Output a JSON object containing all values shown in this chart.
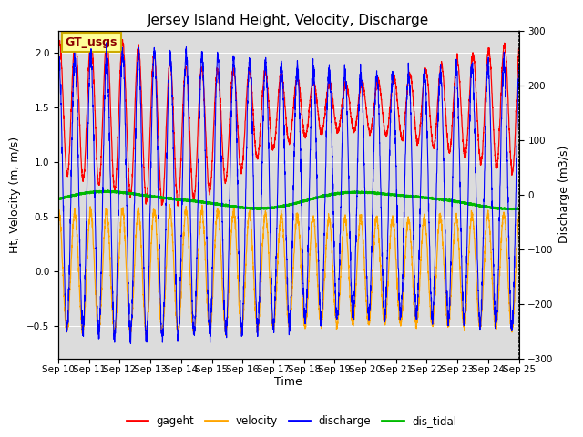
{
  "title": "Jersey Island Height, Velocity, Discharge",
  "xlabel": "Time",
  "ylabel_left": "Ht, Velocity (m, m/s)",
  "ylabel_right": "Discharge (m3/s)",
  "ylim_left": [
    -0.8,
    2.2
  ],
  "ylim_right": [
    -300,
    300
  ],
  "xlim": [
    0,
    360
  ],
  "x_tick_labels": [
    "Sep 10",
    "Sep 11",
    "Sep 12",
    "Sep 13",
    "Sep 14",
    "Sep 15",
    "Sep 16",
    "Sep 17",
    "Sep 18",
    "Sep 19",
    "Sep 20",
    "Sep 21",
    "Sep 22",
    "Sep 23",
    "Sep 24",
    "Sep 25"
  ],
  "x_tick_positions": [
    0,
    24,
    48,
    72,
    96,
    120,
    144,
    168,
    192,
    216,
    240,
    264,
    288,
    312,
    336,
    360
  ],
  "legend_labels": [
    "gageht",
    "velocity",
    "discharge",
    "dis_tidal"
  ],
  "legend_colors": [
    "#FF0000",
    "#FFA500",
    "#0000FF",
    "#00BB00"
  ],
  "gt_usgs_label": "GT_usgs",
  "gt_usgs_bg": "#FFFF99",
  "gt_usgs_border": "#CCAA00",
  "background_color": "#DCDCDC",
  "title_fontsize": 11,
  "axis_label_fontsize": 9,
  "tick_fontsize": 7.5
}
